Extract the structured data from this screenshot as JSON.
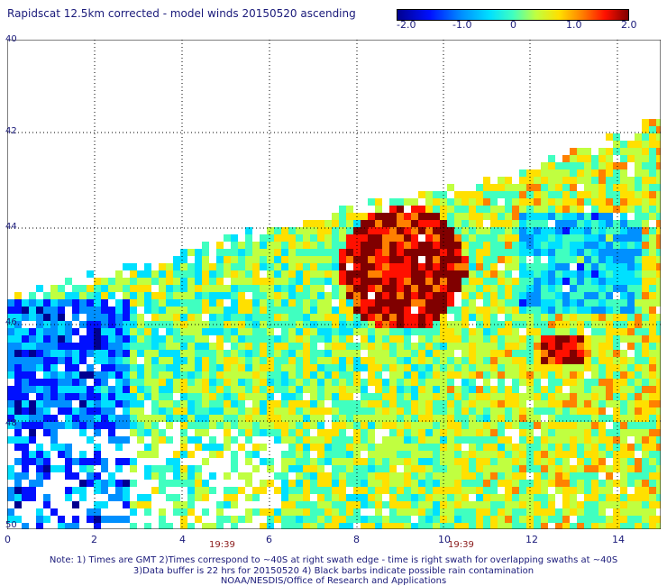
{
  "title": "Rapidscat 12.5km corrected - model winds 20150520 ascending",
  "colorbar": {
    "ticks": [
      "-2.0",
      "-1.0",
      "0",
      "1.0",
      "2.0"
    ],
    "colors": [
      "#000090",
      "#0010ff",
      "#0090ff",
      "#00e0ff",
      "#40ffc0",
      "#c0ff40",
      "#ffe000",
      "#ff8000",
      "#ff1000",
      "#800000"
    ]
  },
  "axes": {
    "x_ticks": [
      "0",
      "2",
      "4",
      "6",
      "8",
      "10",
      "12",
      "14"
    ],
    "y_ticks": [
      "40",
      "42",
      "44",
      "46",
      "48",
      "50"
    ]
  },
  "time_labels": [
    "19:39",
    "19:39"
  ],
  "notes": {
    "line1": "Note: 1) Times are GMT 2)Times correspond to ~40S at right swath edge - time is right swath for overlapping swaths at ~40S",
    "line2": "3)Data buffer is 22 hrs for 20150520 4) Black barbs indicate possible rain contamination",
    "line3": "NOAA/NESDIS/Office of Research and Applications"
  }
}
